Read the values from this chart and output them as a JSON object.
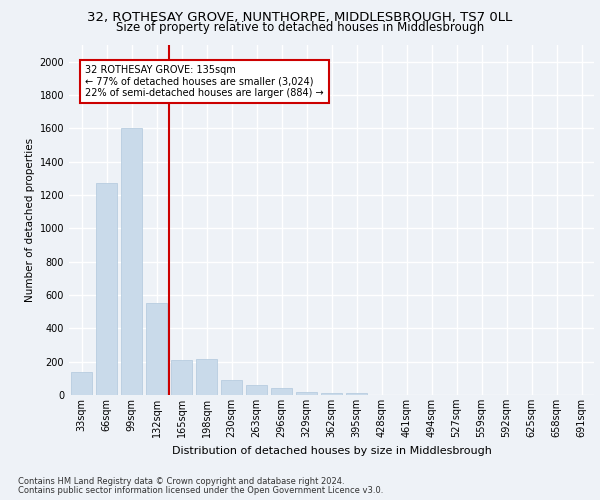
{
  "title1": "32, ROTHESAY GROVE, NUNTHORPE, MIDDLESBROUGH, TS7 0LL",
  "title2": "Size of property relative to detached houses in Middlesbrough",
  "xlabel": "Distribution of detached houses by size in Middlesbrough",
  "ylabel": "Number of detached properties",
  "footer1": "Contains HM Land Registry data © Crown copyright and database right 2024.",
  "footer2": "Contains public sector information licensed under the Open Government Licence v3.0.",
  "annotation_line1": "32 ROTHESAY GROVE: 135sqm",
  "annotation_line2": "← 77% of detached houses are smaller (3,024)",
  "annotation_line3": "22% of semi-detached houses are larger (884) →",
  "bar_color": "#c9daea",
  "bar_edge_color": "#b0c8dc",
  "marker_color": "#cc0000",
  "categories": [
    "33sqm",
    "66sqm",
    "99sqm",
    "132sqm",
    "165sqm",
    "198sqm",
    "230sqm",
    "263sqm",
    "296sqm",
    "329sqm",
    "362sqm",
    "395sqm",
    "428sqm",
    "461sqm",
    "494sqm",
    "527sqm",
    "559sqm",
    "592sqm",
    "625sqm",
    "658sqm",
    "691sqm"
  ],
  "values": [
    140,
    1270,
    1600,
    550,
    210,
    215,
    90,
    62,
    42,
    20,
    12,
    10,
    0,
    0,
    0,
    0,
    0,
    0,
    0,
    0,
    0
  ],
  "marker_bin_index": 3,
  "ylim": [
    0,
    2100
  ],
  "yticks": [
    0,
    200,
    400,
    600,
    800,
    1000,
    1200,
    1400,
    1600,
    1800,
    2000
  ],
  "background_color": "#eef2f7",
  "grid_color": "#ffffff",
  "title1_fontsize": 9.5,
  "title2_fontsize": 8.5,
  "ylabel_fontsize": 7.5,
  "xlabel_fontsize": 8,
  "tick_fontsize": 7,
  "annotation_fontsize": 7,
  "footer_fontsize": 6
}
